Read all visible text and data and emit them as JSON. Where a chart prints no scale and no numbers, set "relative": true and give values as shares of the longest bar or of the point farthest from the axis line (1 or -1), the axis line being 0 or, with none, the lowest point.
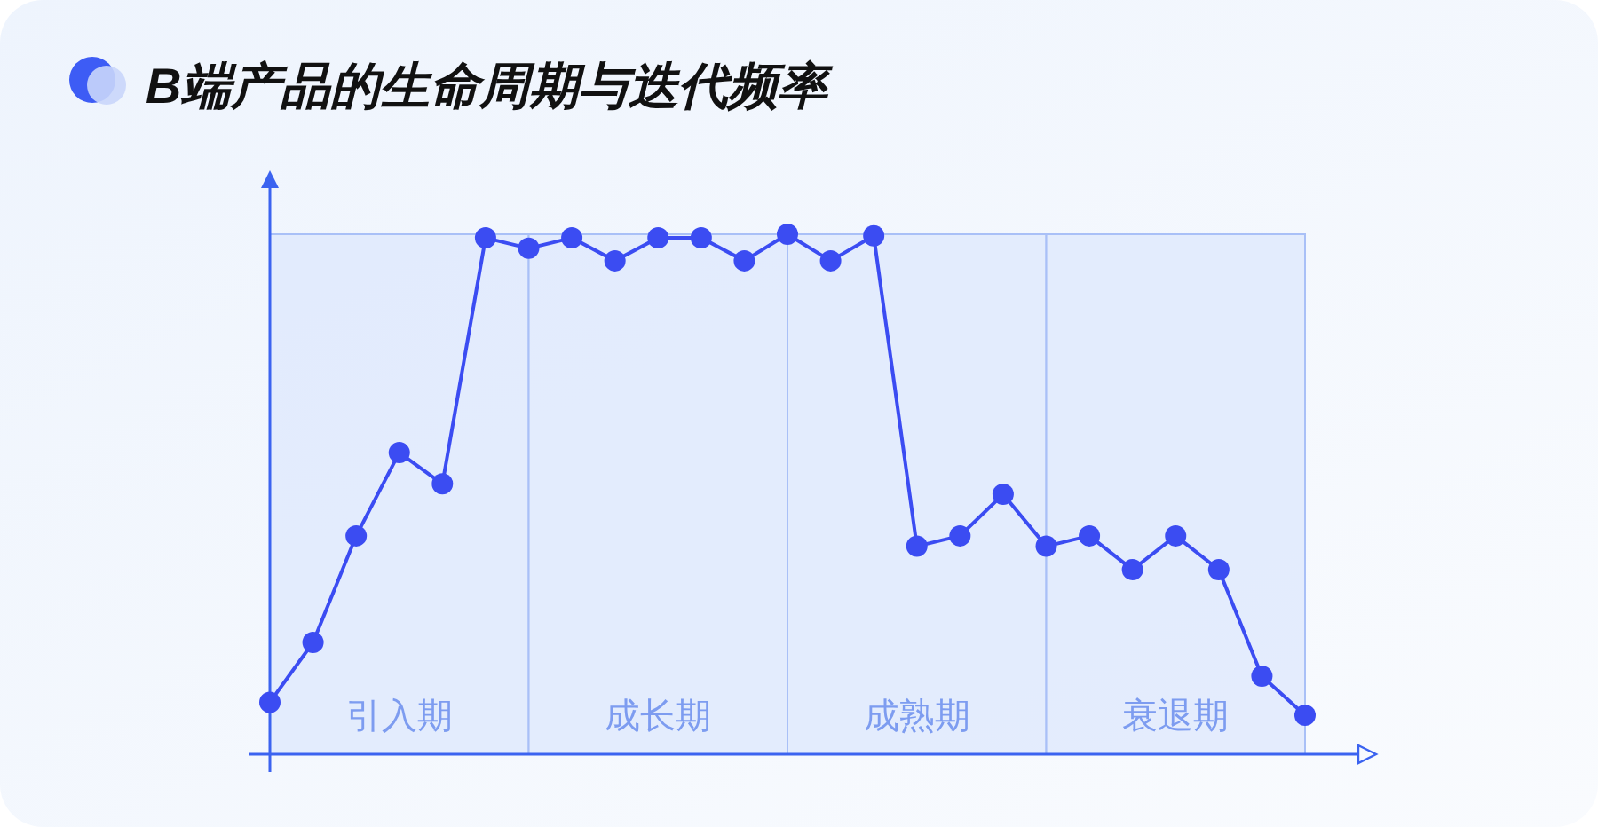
{
  "chart_data": {
    "type": "line",
    "title": "B端产品的生命周期与迭代频率",
    "relative": true,
    "marker": "circle",
    "line_style": "solid",
    "categories": [
      null,
      null,
      null,
      null,
      null,
      null,
      null,
      null,
      null,
      null,
      null,
      null,
      null,
      null,
      null,
      null,
      null,
      null,
      null,
      null,
      null,
      null,
      null,
      null,
      null
    ],
    "series": [
      {
        "color": "#3b4cf2",
        "values": [
          0.1,
          0.215,
          0.42,
          0.58,
          0.52,
          0.993,
          0.973,
          0.993,
          0.949,
          0.993,
          0.993,
          0.949,
          1,
          0.949,
          0.997,
          0.4,
          0.42,
          0.5,
          0.4,
          0.42,
          0.355,
          0.42,
          0.355,
          0.15,
          0.075
        ]
      }
    ],
    "annotations": [
      "引入期",
      "成长期",
      "成熟期",
      "衰退期"
    ]
  }
}
